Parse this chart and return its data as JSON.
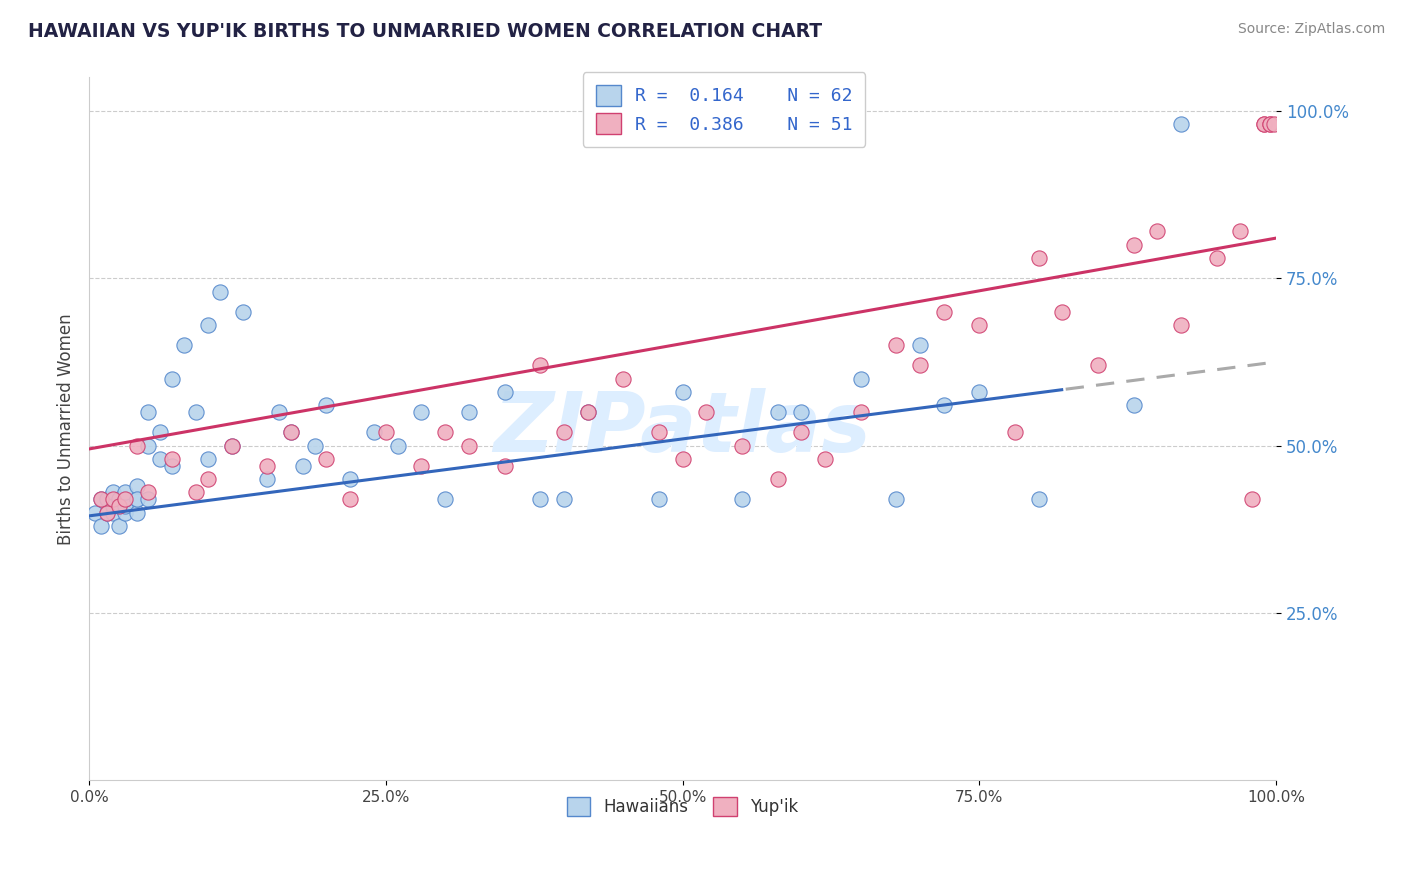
{
  "title": "HAWAIIAN VS YUP'IK BIRTHS TO UNMARRIED WOMEN CORRELATION CHART",
  "source": "Source: ZipAtlas.com",
  "ylabel_label": "Births to Unmarried Women",
  "legend_r1": "R = 0.164",
  "legend_n1": "N = 62",
  "legend_r2": "R = 0.386",
  "legend_n2": "N = 51",
  "color_hawaiian_fill": "#b8d4ec",
  "color_hawaiian_edge": "#5588cc",
  "color_yupik_fill": "#f0b0c0",
  "color_yupik_edge": "#d04070",
  "color_line_hawaiian": "#3366bb",
  "color_line_yupik": "#cc3366",
  "color_line_dash": "#aaaaaa",
  "background_color": "#ffffff",
  "watermark_color": "#ddeeff",
  "grid_color": "#cccccc",
  "title_color": "#222244",
  "ytick_color": "#4488cc",
  "xtick_color": "#444444",
  "source_color": "#888888",
  "ylabel_color": "#444444",
  "haw_x": [
    0.005,
    0.01,
    0.01,
    0.015,
    0.015,
    0.02,
    0.02,
    0.02,
    0.025,
    0.025,
    0.025,
    0.03,
    0.03,
    0.03,
    0.03,
    0.04,
    0.04,
    0.04,
    0.04,
    0.05,
    0.05,
    0.05,
    0.06,
    0.06,
    0.07,
    0.07,
    0.08,
    0.09,
    0.1,
    0.1,
    0.11,
    0.12,
    0.13,
    0.15,
    0.16,
    0.17,
    0.18,
    0.19,
    0.2,
    0.22,
    0.24,
    0.26,
    0.28,
    0.3,
    0.32,
    0.35,
    0.38,
    0.4,
    0.42,
    0.48,
    0.5,
    0.55,
    0.58,
    0.6,
    0.65,
    0.68,
    0.7,
    0.72,
    0.75,
    0.8,
    0.88,
    0.92
  ],
  "haw_y": [
    0.4,
    0.38,
    0.42,
    0.4,
    0.42,
    0.4,
    0.41,
    0.43,
    0.38,
    0.42,
    0.41,
    0.4,
    0.41,
    0.42,
    0.43,
    0.4,
    0.42,
    0.44,
    0.42,
    0.42,
    0.5,
    0.55,
    0.48,
    0.52,
    0.47,
    0.6,
    0.65,
    0.55,
    0.48,
    0.68,
    0.73,
    0.5,
    0.7,
    0.45,
    0.55,
    0.52,
    0.47,
    0.5,
    0.56,
    0.45,
    0.52,
    0.5,
    0.55,
    0.42,
    0.55,
    0.58,
    0.42,
    0.42,
    0.55,
    0.42,
    0.58,
    0.42,
    0.55,
    0.55,
    0.6,
    0.42,
    0.65,
    0.56,
    0.58,
    0.42,
    0.56,
    0.98
  ],
  "yup_x": [
    0.01,
    0.015,
    0.02,
    0.025,
    0.03,
    0.04,
    0.05,
    0.07,
    0.09,
    0.1,
    0.12,
    0.15,
    0.17,
    0.2,
    0.22,
    0.25,
    0.28,
    0.3,
    0.32,
    0.35,
    0.38,
    0.4,
    0.42,
    0.45,
    0.48,
    0.5,
    0.52,
    0.55,
    0.58,
    0.6,
    0.62,
    0.65,
    0.68,
    0.7,
    0.72,
    0.75,
    0.78,
    0.8,
    0.82,
    0.85,
    0.88,
    0.9,
    0.92,
    0.95,
    0.97,
    0.98,
    0.99,
    0.99,
    0.995,
    0.995,
    0.998
  ],
  "yup_y": [
    0.42,
    0.4,
    0.42,
    0.41,
    0.42,
    0.5,
    0.43,
    0.48,
    0.43,
    0.45,
    0.5,
    0.47,
    0.52,
    0.48,
    0.42,
    0.52,
    0.47,
    0.52,
    0.5,
    0.47,
    0.62,
    0.52,
    0.55,
    0.6,
    0.52,
    0.48,
    0.55,
    0.5,
    0.45,
    0.52,
    0.48,
    0.55,
    0.65,
    0.62,
    0.7,
    0.68,
    0.52,
    0.78,
    0.7,
    0.62,
    0.8,
    0.82,
    0.68,
    0.78,
    0.82,
    0.42,
    0.98,
    0.98,
    0.98,
    0.98,
    0.98
  ],
  "haw_line_start_x": 0.0,
  "haw_line_end_solid_x": 0.82,
  "haw_line_end_x": 1.0,
  "haw_line_start_y": 0.395,
  "haw_line_end_y": 0.625,
  "yup_line_start_x": 0.0,
  "yup_line_end_x": 1.0,
  "yup_line_start_y": 0.495,
  "yup_line_end_y": 0.81,
  "xlim": [
    0.0,
    1.0
  ],
  "ylim": [
    0.0,
    1.05
  ],
  "xticks": [
    0.0,
    0.25,
    0.5,
    0.75,
    1.0
  ],
  "yticks": [
    0.25,
    0.5,
    0.75,
    1.0
  ]
}
